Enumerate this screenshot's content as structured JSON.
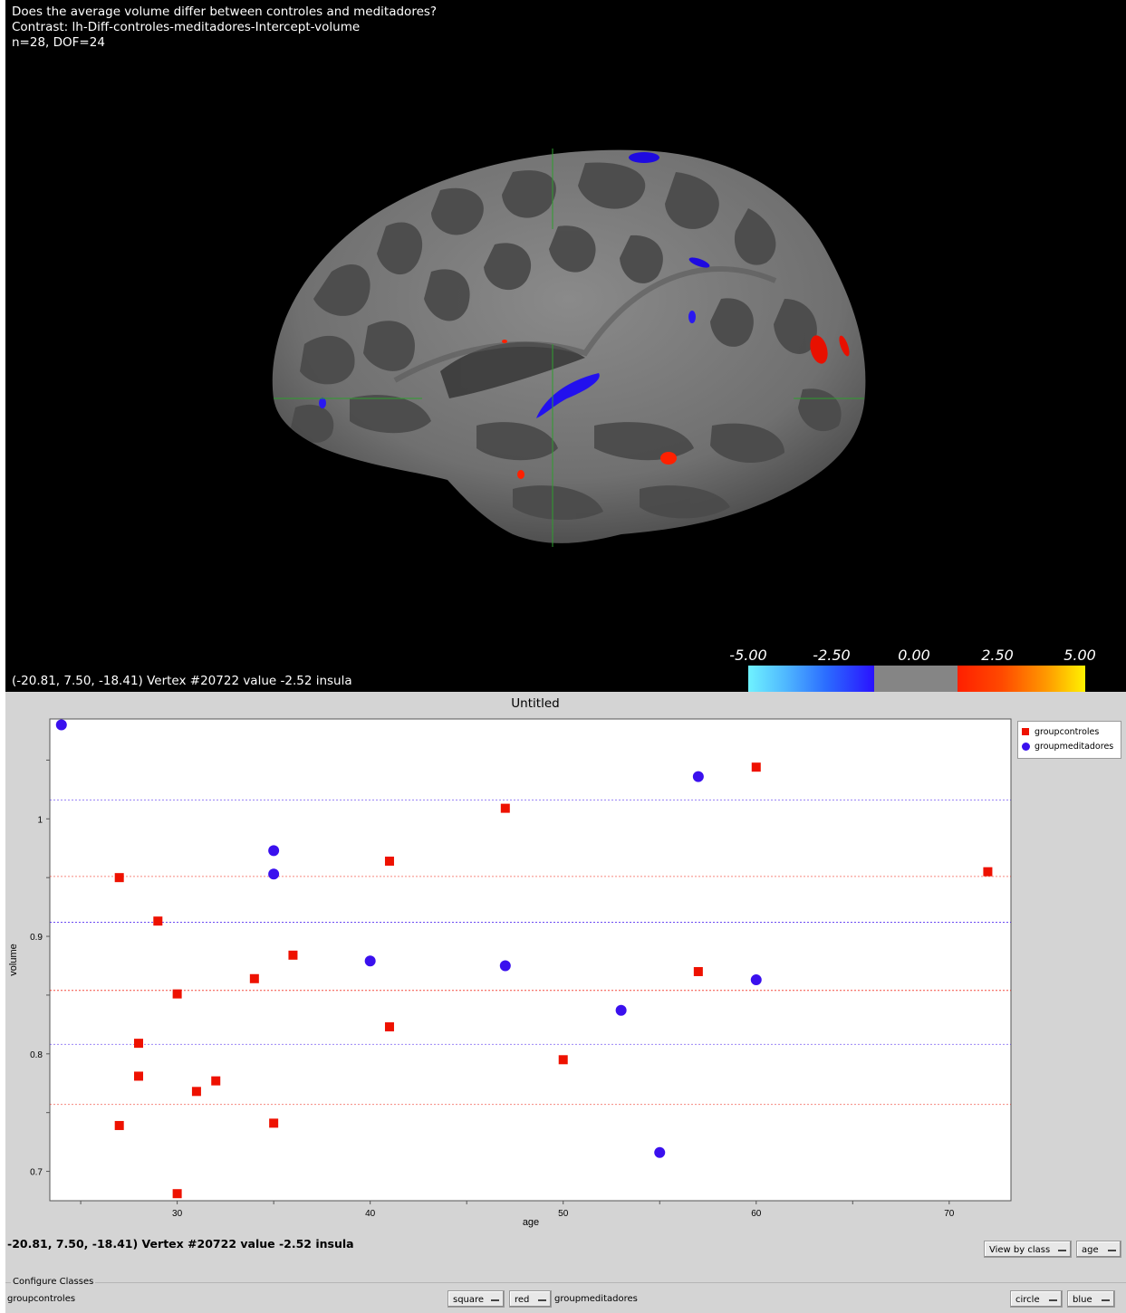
{
  "viewer": {
    "header_lines": [
      "Does the average volume differ between controles and meditadores?",
      "Contrast: lh-Diff-controles-meditadores-Intercept-volume",
      "n=28, DOF=24"
    ],
    "vertex_info": "(-20.81, 7.50, -18.41) Vertex #20722 value -2.52 insula",
    "colorbar": {
      "ticks": [
        "-5.00",
        "-2.50",
        "0.00",
        "2.50",
        "5.00"
      ],
      "neg_colors": [
        "#6ff2ff",
        "#2a12ff"
      ],
      "zero_color": "#858585",
      "pos_colors": [
        "#ff1f00",
        "#fff200"
      ]
    },
    "cursor_color": "#2e9e2e"
  },
  "plot_window": {
    "title": "Untitled",
    "status": "-20.81, 7.50, -18.41) Vertex #20722 value -2.52 insula",
    "view_by_button": "View by class",
    "x_variable_button": "age",
    "configure_classes_label": "Configure Classes",
    "classes": [
      {
        "name": "groupcontroles",
        "shape": "square",
        "color": "red"
      },
      {
        "name": "groupmeditadores",
        "shape": "circle",
        "color": "blue"
      }
    ]
  },
  "chart_data": {
    "type": "scatter",
    "title": "Untitled",
    "xlabel": "age",
    "ylabel": "volume",
    "xlim": [
      23.4,
      73.2
    ],
    "ylim": [
      0.675,
      1.085
    ],
    "xticks": [
      30,
      40,
      50,
      60,
      70
    ],
    "yticks": [
      0.7,
      0.8,
      0.9,
      1
    ],
    "ytick_labels": [
      "0.7",
      "0.8",
      "0.9",
      "1"
    ],
    "legend_position": "top-right",
    "series": [
      {
        "name": "groupcontroles",
        "marker": "square",
        "color": "#ee1100",
        "mean": 0.854,
        "mean_plus_sd": 0.951,
        "mean_minus_sd": 0.757,
        "x": [
          27,
          27,
          28,
          28,
          29,
          30,
          30,
          31,
          32,
          34,
          35,
          36,
          41,
          41,
          47,
          50,
          57,
          60,
          72
        ],
        "y": [
          0.95,
          0.739,
          0.809,
          0.781,
          0.913,
          0.851,
          0.681,
          0.768,
          0.777,
          0.864,
          0.741,
          0.884,
          0.964,
          0.823,
          1.009,
          0.795,
          0.87,
          1.044,
          0.955
        ]
      },
      {
        "name": "groupmeditadores",
        "marker": "circle",
        "color": "#3a10ee",
        "mean": 0.912,
        "mean_plus_sd": 1.016,
        "mean_minus_sd": 0.808,
        "x": [
          24,
          35,
          35,
          40,
          47,
          53,
          55,
          57,
          60
        ],
        "y": [
          1.08,
          0.973,
          0.953,
          0.879,
          0.875,
          0.837,
          0.716,
          1.036,
          0.863
        ]
      }
    ]
  }
}
